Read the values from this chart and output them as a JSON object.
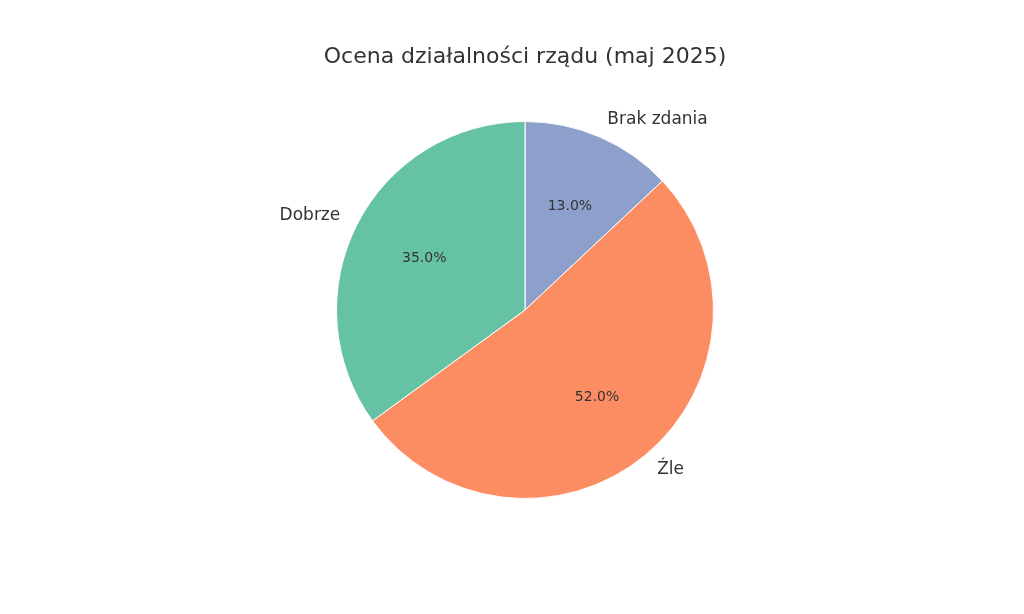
{
  "chart_data": {
    "type": "pie",
    "title": "Ocena działalności rządu (maj 2025)",
    "categories": [
      "Brak zdania",
      "Źle",
      "Dobrze"
    ],
    "values": [
      13,
      52,
      35
    ],
    "colors": [
      "#8da0cb",
      "#fc8d62",
      "#66c2a5"
    ],
    "value_labels": [
      "13.0%",
      "52.0%",
      "35.0%"
    ],
    "legend": false
  }
}
